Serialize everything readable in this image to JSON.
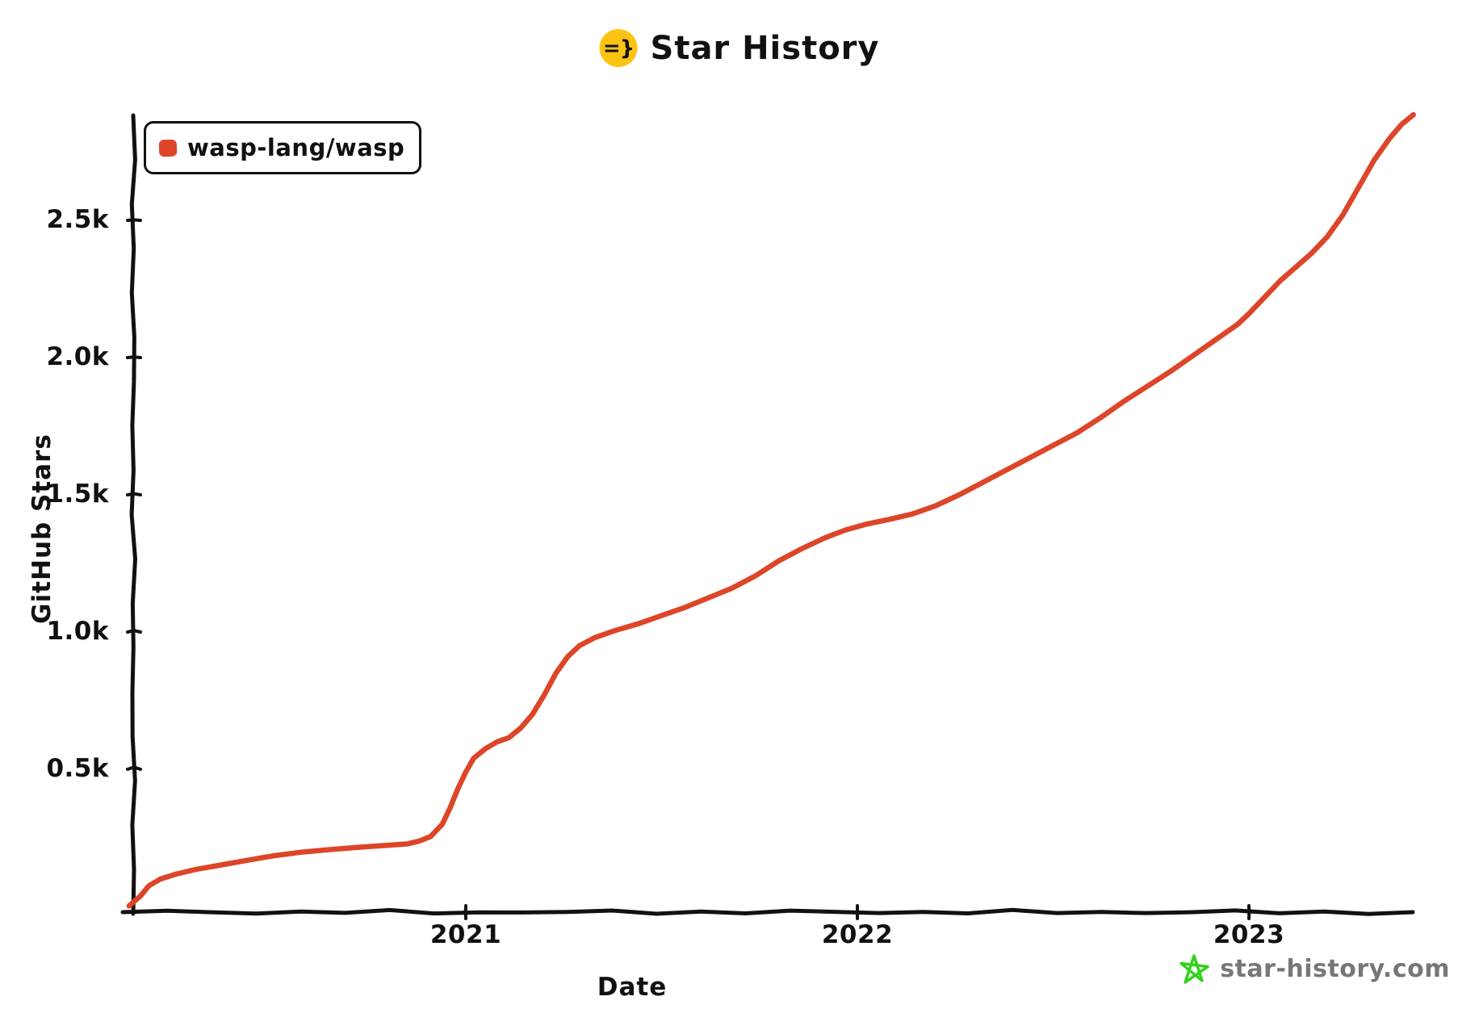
{
  "page": {
    "title": "Star History",
    "title_icon": "=}"
  },
  "legend": {
    "items": [
      {
        "label": "wasp-lang/wasp",
        "color": "#dd4528"
      }
    ]
  },
  "watermark": {
    "label": "star-history.com"
  },
  "colors": {
    "accent_red": "#dd4528",
    "brand_yellow": "#fbc412",
    "star_green": "#2ed216",
    "watermark_gray": "#777777",
    "axis_black": "#111111"
  },
  "chart_data": {
    "type": "line",
    "title": "Star History",
    "xlabel": "Date",
    "ylabel": "GitHub Stars",
    "grid": false,
    "legend_position": "top-left",
    "x_domain_years": [
      2020.13,
      2023.46
    ],
    "y_domain": [
      0,
      2950
    ],
    "x_ticks": [
      {
        "value": 2021,
        "label": "2021"
      },
      {
        "value": 2022,
        "label": "2022"
      },
      {
        "value": 2023,
        "label": "2023"
      }
    ],
    "y_ticks": [
      {
        "value": 500,
        "label": "0.5k"
      },
      {
        "value": 1000,
        "label": "1.0k"
      },
      {
        "value": 1500,
        "label": "1.5k"
      },
      {
        "value": 2000,
        "label": "2.0k"
      },
      {
        "value": 2500,
        "label": "2.5k"
      }
    ],
    "series": [
      {
        "name": "wasp-lang/wasp",
        "color": "#dd4528",
        "points_year_stars": [
          [
            2020.14,
            2
          ],
          [
            2020.17,
            40
          ],
          [
            2020.19,
            75
          ],
          [
            2020.22,
            100
          ],
          [
            2020.26,
            118
          ],
          [
            2020.31,
            135
          ],
          [
            2020.37,
            150
          ],
          [
            2020.44,
            168
          ],
          [
            2020.51,
            185
          ],
          [
            2020.58,
            198
          ],
          [
            2020.65,
            207
          ],
          [
            2020.72,
            215
          ],
          [
            2020.79,
            222
          ],
          [
            2020.85,
            228
          ],
          [
            2020.88,
            238
          ],
          [
            2020.91,
            255
          ],
          [
            2020.94,
            300
          ],
          [
            2020.96,
            360
          ],
          [
            2020.98,
            430
          ],
          [
            2021.0,
            490
          ],
          [
            2021.02,
            540
          ],
          [
            2021.05,
            575
          ],
          [
            2021.08,
            600
          ],
          [
            2021.11,
            615
          ],
          [
            2021.14,
            650
          ],
          [
            2021.17,
            700
          ],
          [
            2021.2,
            770
          ],
          [
            2021.23,
            850
          ],
          [
            2021.26,
            910
          ],
          [
            2021.29,
            950
          ],
          [
            2021.33,
            980
          ],
          [
            2021.38,
            1005
          ],
          [
            2021.44,
            1030
          ],
          [
            2021.5,
            1060
          ],
          [
            2021.56,
            1090
          ],
          [
            2021.62,
            1125
          ],
          [
            2021.68,
            1160
          ],
          [
            2021.74,
            1205
          ],
          [
            2021.8,
            1260
          ],
          [
            2021.86,
            1305
          ],
          [
            2021.92,
            1345
          ],
          [
            2021.97,
            1372
          ],
          [
            2022.02,
            1392
          ],
          [
            2022.08,
            1410
          ],
          [
            2022.14,
            1430
          ],
          [
            2022.2,
            1460
          ],
          [
            2022.26,
            1500
          ],
          [
            2022.32,
            1545
          ],
          [
            2022.38,
            1590
          ],
          [
            2022.44,
            1635
          ],
          [
            2022.5,
            1680
          ],
          [
            2022.56,
            1725
          ],
          [
            2022.62,
            1780
          ],
          [
            2022.68,
            1840
          ],
          [
            2022.74,
            1895
          ],
          [
            2022.8,
            1950
          ],
          [
            2022.86,
            2010
          ],
          [
            2022.92,
            2070
          ],
          [
            2022.97,
            2120
          ],
          [
            2023.0,
            2160
          ],
          [
            2023.04,
            2220
          ],
          [
            2023.08,
            2280
          ],
          [
            2023.12,
            2330
          ],
          [
            2023.16,
            2380
          ],
          [
            2023.2,
            2440
          ],
          [
            2023.24,
            2520
          ],
          [
            2023.28,
            2620
          ],
          [
            2023.32,
            2720
          ],
          [
            2023.36,
            2800
          ],
          [
            2023.39,
            2850
          ],
          [
            2023.42,
            2885
          ]
        ]
      }
    ]
  }
}
